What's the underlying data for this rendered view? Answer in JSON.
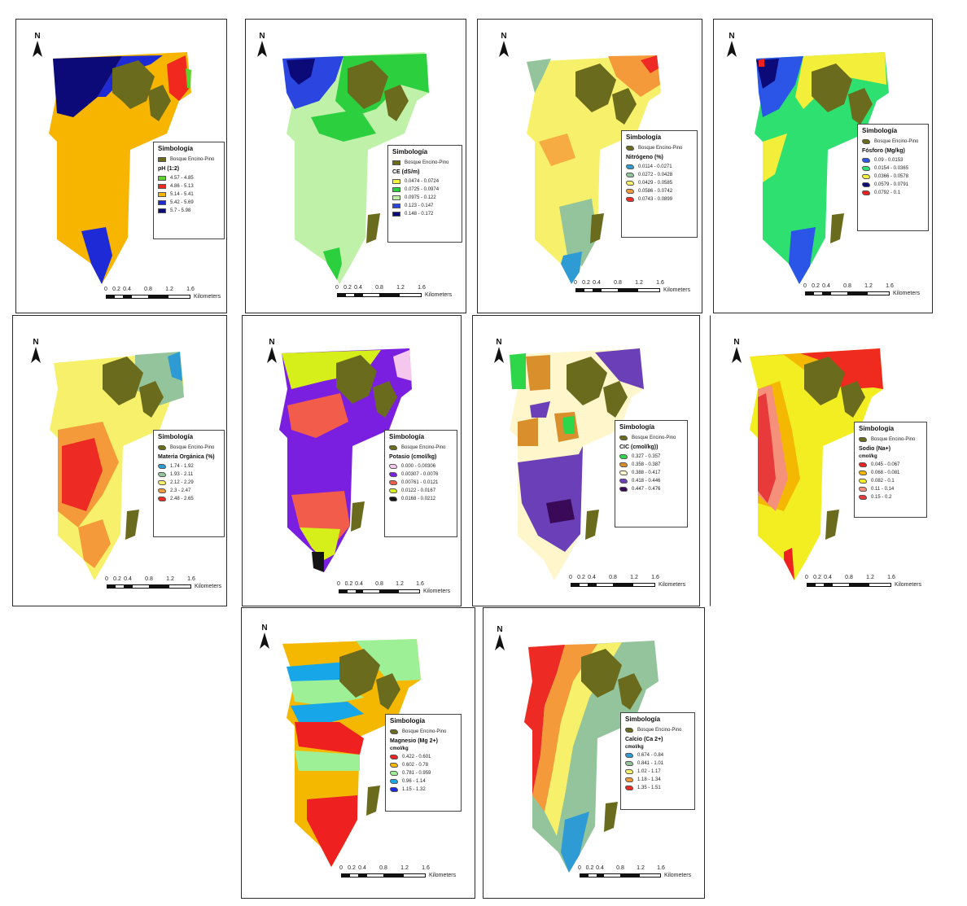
{
  "north_label": "N",
  "forest_label": "Bosque Encino-Pino",
  "legend_title": "Simbología",
  "scale_unit": "Kilometers",
  "colors": {
    "forest": "#6b6b1e",
    "border": "#2a2a2a"
  },
  "panels": [
    {
      "id": "ph",
      "legend": {
        "title": "Simbología",
        "forest": "Bosque Encino-Pino",
        "variable": "pH (1:2)",
        "classes": [
          {
            "label": "4.57 - 4.85",
            "color": "#5fd12e"
          },
          {
            "label": "4.86 - 5.13",
            "color": "#f0281e"
          },
          {
            "label": "5.14 - 5.41",
            "color": "#f7b500"
          },
          {
            "label": "5.42 - 5.69",
            "color": "#1d2ad6"
          },
          {
            "label": "5.7 - 5.98",
            "color": "#0c0a78"
          }
        ]
      },
      "scale_ticks": [
        "0",
        "0.2",
        "0.4",
        "0.8",
        "1.2",
        "1.6"
      ]
    },
    {
      "id": "ce",
      "legend": {
        "title": "Simbología",
        "forest": "Bosque Encino-Pino",
        "variable": "CE (dS/m)",
        "classes": [
          {
            "label": "0.0474 - 0.0724",
            "color": "#f2f236"
          },
          {
            "label": "0.0725 - 0.0974",
            "color": "#2ccf3e"
          },
          {
            "label": "0.0975 - 0.122",
            "color": "#bff2a8"
          },
          {
            "label": "0.123 - 0.147",
            "color": "#2b45e0"
          },
          {
            "label": "0.148 - 0.172",
            "color": "#0c0a78"
          }
        ]
      },
      "scale_ticks": [
        "0",
        "0.2",
        "0.4",
        "0.8",
        "1.2",
        "1.6"
      ]
    },
    {
      "id": "nitrogeno",
      "legend": {
        "title": "Simbología",
        "forest": "Bosque Encino-Pino",
        "variable": "Nitrógeno (%)",
        "classes": [
          {
            "label": "0.0114 - 0.0271",
            "color": "#2f9bd4"
          },
          {
            "label": "0.0272 - 0.0428",
            "color": "#93c49c"
          },
          {
            "label": "0.0429 - 0.0585",
            "color": "#f7f06a"
          },
          {
            "label": "0.0586 - 0.0742",
            "color": "#f59a3a"
          },
          {
            "label": "0.0743 - 0.0899",
            "color": "#ee2a24"
          }
        ]
      },
      "scale_ticks": [
        "0",
        "0.2",
        "0.4",
        "0.8",
        "1.2",
        "1.6"
      ]
    },
    {
      "id": "fosforo",
      "legend": {
        "title": "Simbología",
        "forest": "Bosque Encino-Pino",
        "variable": "Fósforo (Mg/kg)",
        "classes": [
          {
            "label": "0.09 - 0.0153",
            "color": "#2a55e6"
          },
          {
            "label": "0.0154 - 0.0365",
            "color": "#2ee070"
          },
          {
            "label": "0.0366 - 0.0578",
            "color": "#f2ee3a"
          },
          {
            "label": "0.0579 - 0.0791",
            "color": "#0c0a78"
          },
          {
            "label": "0.0792 - 0.1",
            "color": "#ee2020"
          }
        ]
      },
      "scale_ticks": [
        "0",
        "0.2",
        "0.4",
        "0.8",
        "1.2",
        "1.6"
      ]
    },
    {
      "id": "materia",
      "legend": {
        "title": "Simbología",
        "forest": "Bosque Encino-Pino",
        "variable": "Materia Orgánica (%)",
        "classes": [
          {
            "label": "1.74 - 1.92",
            "color": "#2f9bd4"
          },
          {
            "label": "1.93 - 2.11",
            "color": "#93c49c"
          },
          {
            "label": "2.12 - 2.29",
            "color": "#f7f06a"
          },
          {
            "label": "2.3 - 2.47",
            "color": "#f59a3a"
          },
          {
            "label": "2.48 - 2.65",
            "color": "#ee2a24"
          }
        ]
      },
      "scale_ticks": [
        "0",
        "0.2",
        "0.4",
        "0.8",
        "1.2",
        "1.6"
      ]
    },
    {
      "id": "potasio",
      "legend": {
        "title": "Simbología",
        "forest": "Bosque Encino-Pino",
        "variable": "Potasio (cmol/kg)",
        "classes": [
          {
            "label": "0.000 - 0.00306",
            "color": "#f5c6ee"
          },
          {
            "label": "0.00307 - 0.0076",
            "color": "#7a1fe0"
          },
          {
            "label": "0.00761 - 0.0121",
            "color": "#f25c4a"
          },
          {
            "label": "0.0122 - 0.0167",
            "color": "#d6ee1a"
          },
          {
            "label": "0.0168 - 0.0212",
            "color": "#141414"
          }
        ]
      },
      "scale_ticks": [
        "0",
        "0.2",
        "0.4",
        "0.8",
        "1.2",
        "1.6"
      ]
    },
    {
      "id": "cic",
      "legend": {
        "title": "Simbología",
        "forest": "Bosque Encino-Pino",
        "variable": "CIC (cmol/kg))",
        "classes": [
          {
            "label": "0.327 - 0.357",
            "color": "#2ed64a"
          },
          {
            "label": "0.358 - 0.387",
            "color": "#d9902c"
          },
          {
            "label": "0.388 - 0.417",
            "color": "#fff6cc"
          },
          {
            "label": "0.418 - 0.446",
            "color": "#6a3fb8"
          },
          {
            "label": "0.447 - 0.476",
            "color": "#3a0a58"
          }
        ]
      },
      "scale_ticks": [
        "0",
        "0.2",
        "0.4",
        "0.8",
        "1.2",
        "1.6"
      ]
    },
    {
      "id": "sodio",
      "legend": {
        "title": "Simbología",
        "forest": "Bosque Encino-Pino",
        "variable": "Sodio (Na+)",
        "unit": "cmol/kg",
        "classes": [
          {
            "label": "0.045 - 0.067",
            "color": "#ee2020"
          },
          {
            "label": "0.068 - 0.081",
            "color": "#f5b800"
          },
          {
            "label": "0.082 - 0.1",
            "color": "#f2ee22"
          },
          {
            "label": "0.11 - 0.14",
            "color": "#f5907a"
          },
          {
            "label": "0.15 - 0.2",
            "color": "#e83a3a"
          }
        ]
      },
      "scale_ticks": [
        "0",
        "0.2",
        "0.4",
        "0.8",
        "1.2",
        "1.6"
      ]
    },
    {
      "id": "magnesio",
      "legend": {
        "title": "Simbología",
        "forest": "Bosque Encino-Pino",
        "variable": "Magnesio (Mg 2+)",
        "unit": "cmol/kg",
        "classes": [
          {
            "label": "0.422 - 0.601",
            "color": "#ee2020"
          },
          {
            "label": "0.602 - 0.78",
            "color": "#f5b800"
          },
          {
            "label": "0.781 - 0.959",
            "color": "#9ef096"
          },
          {
            "label": "0.96 - 1.14",
            "color": "#17a6e8"
          },
          {
            "label": "1.15 - 1.32",
            "color": "#1a2ae0"
          }
        ]
      },
      "scale_ticks": [
        "0",
        "0.2",
        "0.4",
        "0.8",
        "1.2",
        "1.6"
      ]
    },
    {
      "id": "calcio",
      "legend": {
        "title": "Simbología",
        "forest": "Bosque Encino-Pino",
        "variable": "Calcio (Ca 2+)",
        "unit": "cmol/kg",
        "classes": [
          {
            "label": "0.674 - 0.84",
            "color": "#2f9bd4"
          },
          {
            "label": "0.841 - 1.01",
            "color": "#93c49c"
          },
          {
            "label": "1.02 - 1.17",
            "color": "#f7f06a"
          },
          {
            "label": "1.18 - 1.34",
            "color": "#f59a3a"
          },
          {
            "label": "1.35 - 1.51",
            "color": "#ee2a24"
          }
        ]
      },
      "scale_ticks": [
        "0",
        "0.2",
        "0.4",
        "0.8",
        "1.2",
        "1.6"
      ]
    }
  ],
  "cic_scale_ticks": [
    "0",
    "0.2",
    "0.4",
    "0.8",
    "1.2",
    "1.6"
  ]
}
